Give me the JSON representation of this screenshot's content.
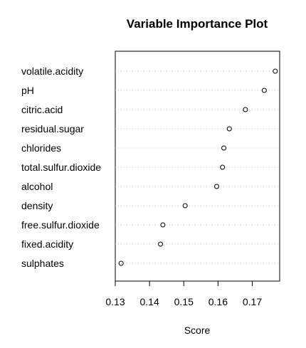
{
  "chart_data": {
    "type": "scatter",
    "title": "Variable Importance Plot",
    "xlabel": "Score",
    "ylabel": "",
    "xlim": [
      0.13,
      0.178
    ],
    "xticks": [
      0.13,
      0.14,
      0.15,
      0.16,
      0.17
    ],
    "xtick_labels": [
      "0.13",
      "0.14",
      "0.15",
      "0.16",
      "0.17"
    ],
    "grid": true,
    "categories": [
      "volatile.acidity",
      "pH",
      "citric.acid",
      "residual.sugar",
      "chlorides",
      "total.sulfur.dioxide",
      "alcohol",
      "density",
      "free.sulfur.dioxide",
      "fixed.acidity",
      "sulphates"
    ],
    "values": [
      0.1767,
      0.1735,
      0.168,
      0.1633,
      0.1617,
      0.1613,
      0.1596,
      0.1504,
      0.1439,
      0.1432,
      0.1317
    ]
  },
  "colors": {
    "points": "#000000",
    "grid": "#bebebe",
    "frame": "#000000"
  }
}
